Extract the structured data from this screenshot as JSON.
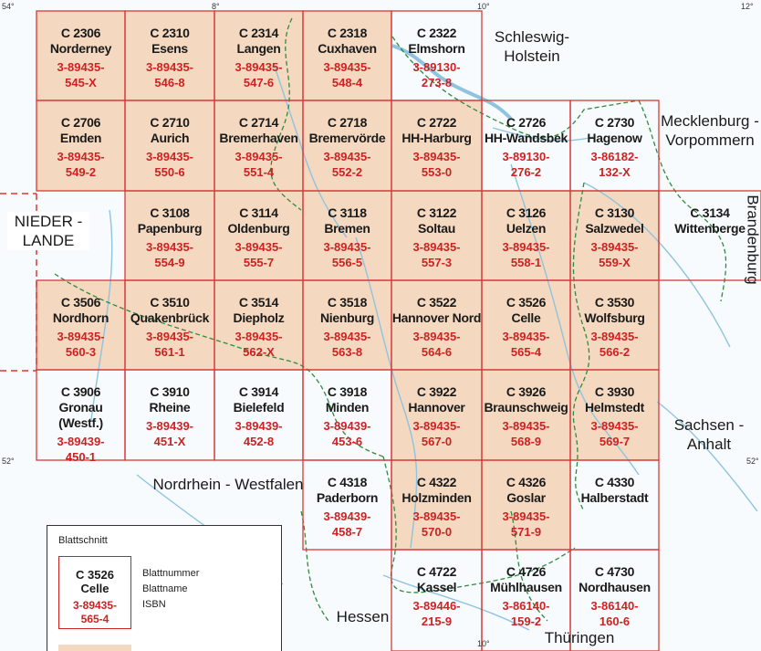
{
  "colors": {
    "sheet_fill": "#f4d9c0",
    "grid_red": "#d63a3a",
    "isbn_red": "#cc2222",
    "water_blue": "#8fc3df",
    "border_green": "#2f8a3c",
    "background": "#f8fbfd"
  },
  "coords": [
    {
      "label": "54°",
      "pos": "top-left"
    },
    {
      "label": "8°",
      "pos": "top"
    },
    {
      "label": "10°",
      "pos": "top"
    },
    {
      "label": "12°",
      "pos": "top-right"
    },
    {
      "label": "52°",
      "pos": "left"
    },
    {
      "label": "52°",
      "pos": "right"
    },
    {
      "label": "10°",
      "pos": "bottom"
    }
  ],
  "regions": [
    {
      "id": "schleswig",
      "text": "Schleswig-\nHolstein"
    },
    {
      "id": "mecklenburg",
      "text": "Mecklenburg -\nVorpommern"
    },
    {
      "id": "niederlande",
      "text": "NIEDER -\nLANDE"
    },
    {
      "id": "brandenburg",
      "text": "Brandenburg"
    },
    {
      "id": "sachsen",
      "text": "Sachsen -\nAnhalt"
    },
    {
      "id": "nrw",
      "text": "Nordrhein - Westfalen"
    },
    {
      "id": "hessen",
      "text": "Hessen"
    },
    {
      "id": "thueringen",
      "text": "Thüringen"
    }
  ],
  "sheets": [
    {
      "row": 0,
      "col": 0,
      "num": "C 2306",
      "name": "Norderney",
      "isbn1": "3-89435-",
      "isbn2": "545-X",
      "filled": true
    },
    {
      "row": 0,
      "col": 1,
      "num": "C 2310",
      "name": "Esens",
      "isbn1": "3-89435-",
      "isbn2": "546-8",
      "filled": true
    },
    {
      "row": 0,
      "col": 2,
      "num": "C 2314",
      "name": "Langen",
      "isbn1": "3-89435-",
      "isbn2": "547-6",
      "filled": true
    },
    {
      "row": 0,
      "col": 3,
      "num": "C 2318",
      "name": "Cuxhaven",
      "isbn1": "3-89435-",
      "isbn2": "548-4",
      "filled": true
    },
    {
      "row": 0,
      "col": 4,
      "num": "C 2322",
      "name": "Elmshorn",
      "isbn1": "3-89130-",
      "isbn2": "273-8",
      "filled": false
    },
    {
      "row": 1,
      "col": 0,
      "num": "C 2706",
      "name": "Emden",
      "isbn1": "3-89435-",
      "isbn2": "549-2",
      "filled": true
    },
    {
      "row": 1,
      "col": 1,
      "num": "C 2710",
      "name": "Aurich",
      "isbn1": "3-89435-",
      "isbn2": "550-6",
      "filled": true
    },
    {
      "row": 1,
      "col": 2,
      "num": "C 2714",
      "name": "Bremerhaven",
      "isbn1": "3-89435-",
      "isbn2": "551-4",
      "filled": true
    },
    {
      "row": 1,
      "col": 3,
      "num": "C 2718",
      "name": "Bremervörde",
      "isbn1": "3-89435-",
      "isbn2": "552-2",
      "filled": true
    },
    {
      "row": 1,
      "col": 4,
      "num": "C 2722",
      "name": "HH-Harburg",
      "isbn1": "3-89435-",
      "isbn2": "553-0",
      "filled": true
    },
    {
      "row": 1,
      "col": 5,
      "num": "C 2726",
      "name": "HH-Wandsbek",
      "isbn1": "3-89130-",
      "isbn2": "276-2",
      "filled": false
    },
    {
      "row": 1,
      "col": 6,
      "num": "C 2730",
      "name": "Hagenow",
      "isbn1": "3-86182-",
      "isbn2": "132-X",
      "filled": false
    },
    {
      "row": 2,
      "col": 1,
      "num": "C 3108",
      "name": "Papenburg",
      "isbn1": "3-89435-",
      "isbn2": "554-9",
      "filled": true
    },
    {
      "row": 2,
      "col": 2,
      "num": "C 3114",
      "name": "Oldenburg",
      "isbn1": "3-89435-",
      "isbn2": "555-7",
      "filled": true
    },
    {
      "row": 2,
      "col": 3,
      "num": "C 3118",
      "name": "Bremen",
      "isbn1": "3-89435-",
      "isbn2": "556-5",
      "filled": true
    },
    {
      "row": 2,
      "col": 4,
      "num": "C 3122",
      "name": "Soltau",
      "isbn1": "3-89435-",
      "isbn2": "557-3",
      "filled": true
    },
    {
      "row": 2,
      "col": 5,
      "num": "C 3126",
      "name": "Uelzen",
      "isbn1": "3-89435-",
      "isbn2": "558-1",
      "filled": true
    },
    {
      "row": 2,
      "col": 6,
      "num": "C 3130",
      "name": "Salzwedel",
      "isbn1": "3-89435-",
      "isbn2": "559-X",
      "filled": true
    },
    {
      "row": 2,
      "col": 7,
      "num": "C 3134",
      "name": "Wittenberge",
      "isbn1": "",
      "isbn2": "",
      "filled": false
    },
    {
      "row": 3,
      "col": 0,
      "num": "C 3506",
      "name": "Nordhorn",
      "isbn1": "3-89435-",
      "isbn2": "560-3",
      "filled": true
    },
    {
      "row": 3,
      "col": 1,
      "num": "C 3510",
      "name": "Quakenbrück",
      "isbn1": "3-89435-",
      "isbn2": "561-1",
      "filled": true
    },
    {
      "row": 3,
      "col": 2,
      "num": "C 3514",
      "name": "Diepholz",
      "isbn1": "3-89435-",
      "isbn2": "562-X",
      "filled": true
    },
    {
      "row": 3,
      "col": 3,
      "num": "C 3518",
      "name": "Nienburg",
      "isbn1": "3-89435-",
      "isbn2": "563-8",
      "filled": true
    },
    {
      "row": 3,
      "col": 4,
      "num": "C 3522",
      "name": "Hannover Nord",
      "isbn1": "3-89435-",
      "isbn2": "564-6",
      "filled": true
    },
    {
      "row": 3,
      "col": 5,
      "num": "C 3526",
      "name": "Celle",
      "isbn1": "3-89435-",
      "isbn2": "565-4",
      "filled": true
    },
    {
      "row": 3,
      "col": 6,
      "num": "C 3530",
      "name": "Wolfsburg",
      "isbn1": "3-89435-",
      "isbn2": "566-2",
      "filled": true
    },
    {
      "row": 4,
      "col": 0,
      "num": "C 3906",
      "name": "Gronau (Westf.)",
      "isbn1": "3-89439-",
      "isbn2": "450-1",
      "filled": false
    },
    {
      "row": 4,
      "col": 1,
      "num": "C 3910",
      "name": "Rheine",
      "isbn1": "3-89439-",
      "isbn2": "451-X",
      "filled": false
    },
    {
      "row": 4,
      "col": 2,
      "num": "C 3914",
      "name": "Bielefeld",
      "isbn1": "3-89439-",
      "isbn2": "452-8",
      "filled": false
    },
    {
      "row": 4,
      "col": 3,
      "num": "C 3918",
      "name": "Minden",
      "isbn1": "3-89439-",
      "isbn2": "453-6",
      "filled": false
    },
    {
      "row": 4,
      "col": 4,
      "num": "C 3922",
      "name": "Hannover",
      "isbn1": "3-89435-",
      "isbn2": "567-0",
      "filled": true
    },
    {
      "row": 4,
      "col": 5,
      "num": "C 3926",
      "name": "Braunschweig",
      "isbn1": "3-89435-",
      "isbn2": "568-9",
      "filled": true
    },
    {
      "row": 4,
      "col": 6,
      "num": "C 3930",
      "name": "Helmstedt",
      "isbn1": "3-89435-",
      "isbn2": "569-7",
      "filled": true
    },
    {
      "row": 5,
      "col": 3,
      "num": "C 4318",
      "name": "Paderborn",
      "isbn1": "3-89439-",
      "isbn2": "458-7",
      "filled": false
    },
    {
      "row": 5,
      "col": 4,
      "num": "C 4322",
      "name": "Holzminden",
      "isbn1": "3-89435-",
      "isbn2": "570-0",
      "filled": true
    },
    {
      "row": 5,
      "col": 5,
      "num": "C 4326",
      "name": "Goslar",
      "isbn1": "3-89435-",
      "isbn2": "571-9",
      "filled": true
    },
    {
      "row": 5,
      "col": 6,
      "num": "C 4330",
      "name": "Halberstadt",
      "isbn1": "",
      "isbn2": "",
      "filled": false
    },
    {
      "row": 6,
      "col": 4,
      "num": "C 4722",
      "name": "Kassel",
      "isbn1": "3-89446-",
      "isbn2": "215-9",
      "filled": false
    },
    {
      "row": 6,
      "col": 5,
      "num": "C 4726",
      "name": "Mühlhausen",
      "isbn1": "3-86140-",
      "isbn2": "159-2",
      "filled": false
    },
    {
      "row": 6,
      "col": 6,
      "num": "C 4730",
      "name": "Nordhausen",
      "isbn1": "3-86140-",
      "isbn2": "160-6",
      "filled": false
    }
  ],
  "legend": {
    "title": "Blattschnitt",
    "sample_num": "C 3526",
    "sample_name": "Celle",
    "sample_isbn1": "3-89435-",
    "sample_isbn2": "565-4",
    "label_num": "Blattnummer",
    "label_name": "Blattname",
    "label_isbn": "ISBN"
  }
}
